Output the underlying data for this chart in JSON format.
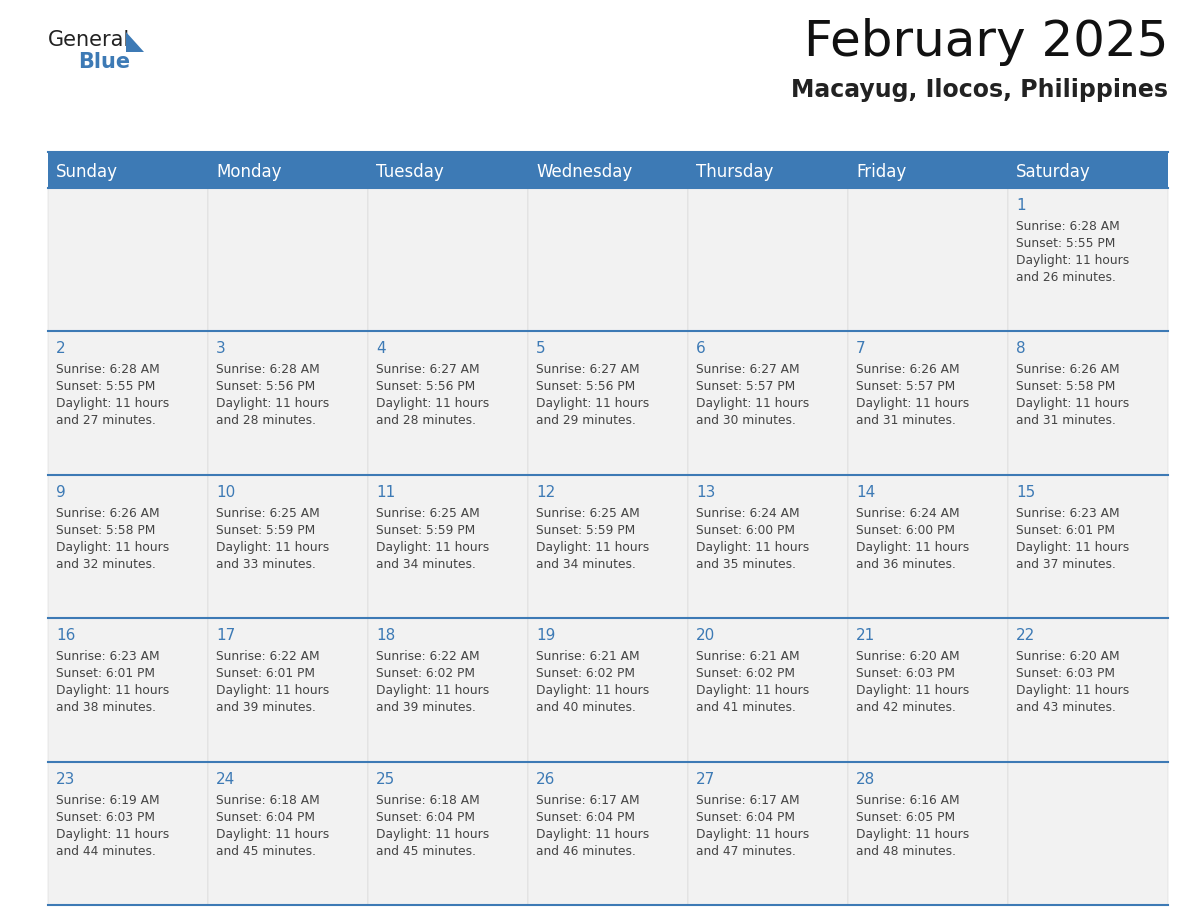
{
  "title": "February 2025",
  "subtitle": "Macayug, Ilocos, Philippines",
  "header_color": "#3d7ab5",
  "header_text_color": "#ffffff",
  "cell_bg": "#f2f2f2",
  "day_text_color": "#3d7ab5",
  "info_text_color": "#444444",
  "border_color": "#3d7ab5",
  "days_of_week": [
    "Sunday",
    "Monday",
    "Tuesday",
    "Wednesday",
    "Thursday",
    "Friday",
    "Saturday"
  ],
  "calendar_data": [
    [
      {
        "day": "",
        "sunrise": "",
        "sunset": "",
        "daylight_hrs": "",
        "daylight_min": ""
      },
      {
        "day": "",
        "sunrise": "",
        "sunset": "",
        "daylight_hrs": "",
        "daylight_min": ""
      },
      {
        "day": "",
        "sunrise": "",
        "sunset": "",
        "daylight_hrs": "",
        "daylight_min": ""
      },
      {
        "day": "",
        "sunrise": "",
        "sunset": "",
        "daylight_hrs": "",
        "daylight_min": ""
      },
      {
        "day": "",
        "sunrise": "",
        "sunset": "",
        "daylight_hrs": "",
        "daylight_min": ""
      },
      {
        "day": "",
        "sunrise": "",
        "sunset": "",
        "daylight_hrs": "",
        "daylight_min": ""
      },
      {
        "day": "1",
        "sunrise": "6:28 AM",
        "sunset": "5:55 PM",
        "daylight_hrs": "11 hours",
        "daylight_min": "and 26 minutes."
      }
    ],
    [
      {
        "day": "2",
        "sunrise": "6:28 AM",
        "sunset": "5:55 PM",
        "daylight_hrs": "11 hours",
        "daylight_min": "and 27 minutes."
      },
      {
        "day": "3",
        "sunrise": "6:28 AM",
        "sunset": "5:56 PM",
        "daylight_hrs": "11 hours",
        "daylight_min": "and 28 minutes."
      },
      {
        "day": "4",
        "sunrise": "6:27 AM",
        "sunset": "5:56 PM",
        "daylight_hrs": "11 hours",
        "daylight_min": "and 28 minutes."
      },
      {
        "day": "5",
        "sunrise": "6:27 AM",
        "sunset": "5:56 PM",
        "daylight_hrs": "11 hours",
        "daylight_min": "and 29 minutes."
      },
      {
        "day": "6",
        "sunrise": "6:27 AM",
        "sunset": "5:57 PM",
        "daylight_hrs": "11 hours",
        "daylight_min": "and 30 minutes."
      },
      {
        "day": "7",
        "sunrise": "6:26 AM",
        "sunset": "5:57 PM",
        "daylight_hrs": "11 hours",
        "daylight_min": "and 31 minutes."
      },
      {
        "day": "8",
        "sunrise": "6:26 AM",
        "sunset": "5:58 PM",
        "daylight_hrs": "11 hours",
        "daylight_min": "and 31 minutes."
      }
    ],
    [
      {
        "day": "9",
        "sunrise": "6:26 AM",
        "sunset": "5:58 PM",
        "daylight_hrs": "11 hours",
        "daylight_min": "and 32 minutes."
      },
      {
        "day": "10",
        "sunrise": "6:25 AM",
        "sunset": "5:59 PM",
        "daylight_hrs": "11 hours",
        "daylight_min": "and 33 minutes."
      },
      {
        "day": "11",
        "sunrise": "6:25 AM",
        "sunset": "5:59 PM",
        "daylight_hrs": "11 hours",
        "daylight_min": "and 34 minutes."
      },
      {
        "day": "12",
        "sunrise": "6:25 AM",
        "sunset": "5:59 PM",
        "daylight_hrs": "11 hours",
        "daylight_min": "and 34 minutes."
      },
      {
        "day": "13",
        "sunrise": "6:24 AM",
        "sunset": "6:00 PM",
        "daylight_hrs": "11 hours",
        "daylight_min": "and 35 minutes."
      },
      {
        "day": "14",
        "sunrise": "6:24 AM",
        "sunset": "6:00 PM",
        "daylight_hrs": "11 hours",
        "daylight_min": "and 36 minutes."
      },
      {
        "day": "15",
        "sunrise": "6:23 AM",
        "sunset": "6:01 PM",
        "daylight_hrs": "11 hours",
        "daylight_min": "and 37 minutes."
      }
    ],
    [
      {
        "day": "16",
        "sunrise": "6:23 AM",
        "sunset": "6:01 PM",
        "daylight_hrs": "11 hours",
        "daylight_min": "and 38 minutes."
      },
      {
        "day": "17",
        "sunrise": "6:22 AM",
        "sunset": "6:01 PM",
        "daylight_hrs": "11 hours",
        "daylight_min": "and 39 minutes."
      },
      {
        "day": "18",
        "sunrise": "6:22 AM",
        "sunset": "6:02 PM",
        "daylight_hrs": "11 hours",
        "daylight_min": "and 39 minutes."
      },
      {
        "day": "19",
        "sunrise": "6:21 AM",
        "sunset": "6:02 PM",
        "daylight_hrs": "11 hours",
        "daylight_min": "and 40 minutes."
      },
      {
        "day": "20",
        "sunrise": "6:21 AM",
        "sunset": "6:02 PM",
        "daylight_hrs": "11 hours",
        "daylight_min": "and 41 minutes."
      },
      {
        "day": "21",
        "sunrise": "6:20 AM",
        "sunset": "6:03 PM",
        "daylight_hrs": "11 hours",
        "daylight_min": "and 42 minutes."
      },
      {
        "day": "22",
        "sunrise": "6:20 AM",
        "sunset": "6:03 PM",
        "daylight_hrs": "11 hours",
        "daylight_min": "and 43 minutes."
      }
    ],
    [
      {
        "day": "23",
        "sunrise": "6:19 AM",
        "sunset": "6:03 PM",
        "daylight_hrs": "11 hours",
        "daylight_min": "and 44 minutes."
      },
      {
        "day": "24",
        "sunrise": "6:18 AM",
        "sunset": "6:04 PM",
        "daylight_hrs": "11 hours",
        "daylight_min": "and 45 minutes."
      },
      {
        "day": "25",
        "sunrise": "6:18 AM",
        "sunset": "6:04 PM",
        "daylight_hrs": "11 hours",
        "daylight_min": "and 45 minutes."
      },
      {
        "day": "26",
        "sunrise": "6:17 AM",
        "sunset": "6:04 PM",
        "daylight_hrs": "11 hours",
        "daylight_min": "and 46 minutes."
      },
      {
        "day": "27",
        "sunrise": "6:17 AM",
        "sunset": "6:04 PM",
        "daylight_hrs": "11 hours",
        "daylight_min": "and 47 minutes."
      },
      {
        "day": "28",
        "sunrise": "6:16 AM",
        "sunset": "6:05 PM",
        "daylight_hrs": "11 hours",
        "daylight_min": "and 48 minutes."
      },
      {
        "day": "",
        "sunrise": "",
        "sunset": "",
        "daylight_hrs": "",
        "daylight_min": ""
      }
    ]
  ]
}
